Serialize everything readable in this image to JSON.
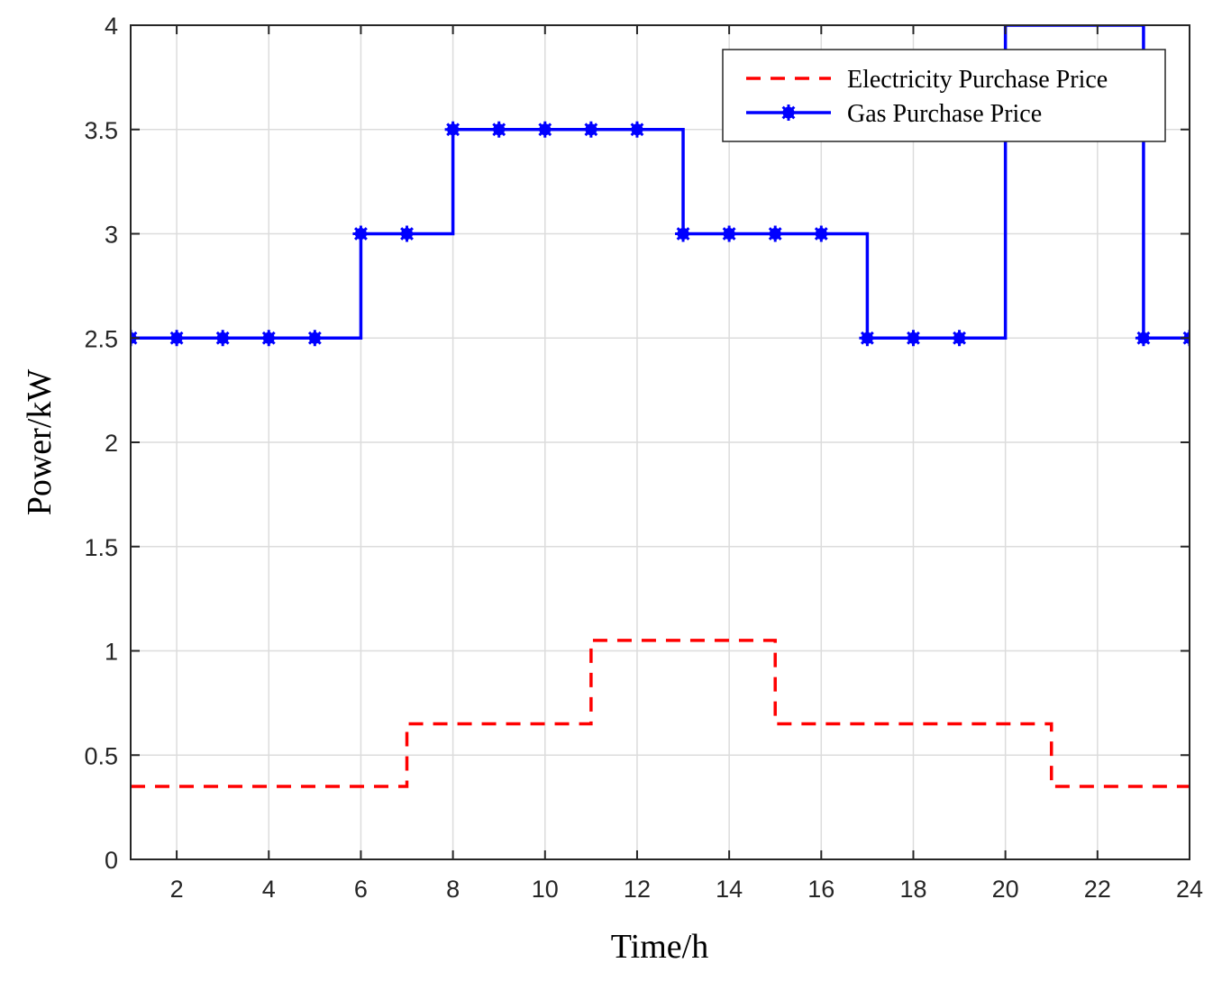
{
  "chart_data": {
    "type": "line",
    "xlabel": "Time/h",
    "ylabel": "Power/kW",
    "xlim": [
      1,
      24
    ],
    "ylim": [
      0,
      4
    ],
    "xticks": [
      2,
      4,
      6,
      8,
      10,
      12,
      14,
      16,
      18,
      20,
      22,
      24
    ],
    "yticks": [
      0,
      0.5,
      1,
      1.5,
      2,
      2.5,
      3,
      3.5,
      4
    ],
    "ytick_labels": [
      "0",
      "0.5",
      "1",
      "1.5",
      "2",
      "2.5",
      "3",
      "3.5",
      "4"
    ],
    "grid": true,
    "legend_position": "top-right",
    "series": [
      {
        "name": "Electricity Purchase Price",
        "style": "dashed-step",
        "color": "#ff0000",
        "markers": false,
        "x": [
          1,
          2,
          3,
          4,
          5,
          6,
          7,
          8,
          9,
          10,
          11,
          12,
          13,
          14,
          15,
          16,
          17,
          18,
          19,
          20,
          21,
          22,
          23,
          24
        ],
        "values": [
          0.35,
          0.35,
          0.35,
          0.35,
          0.35,
          0.35,
          0.65,
          0.65,
          0.65,
          0.65,
          1.05,
          1.05,
          1.05,
          1.05,
          0.65,
          0.65,
          0.65,
          0.65,
          0.65,
          0.65,
          0.35,
          0.35,
          0.35,
          0.35
        ]
      },
      {
        "name": "Gas Purchase Price",
        "style": "solid-step",
        "color": "#0000ff",
        "markers": true,
        "x": [
          1,
          2,
          3,
          4,
          5,
          6,
          7,
          8,
          9,
          10,
          11,
          12,
          13,
          14,
          15,
          16,
          17,
          18,
          19,
          20,
          21,
          22,
          23,
          24
        ],
        "values": [
          2.5,
          2.5,
          2.5,
          2.5,
          2.5,
          3.0,
          3.0,
          3.5,
          3.5,
          3.5,
          3.5,
          3.5,
          3.0,
          3.0,
          3.0,
          3.0,
          2.5,
          2.5,
          2.5,
          4.0,
          4.0,
          4.0,
          2.5,
          2.5
        ],
        "marker_x": [
          1,
          2,
          3,
          4,
          5,
          6,
          7,
          8,
          9,
          10,
          11,
          12,
          13,
          14,
          15,
          16,
          17,
          18,
          19,
          23,
          24
        ]
      }
    ]
  }
}
